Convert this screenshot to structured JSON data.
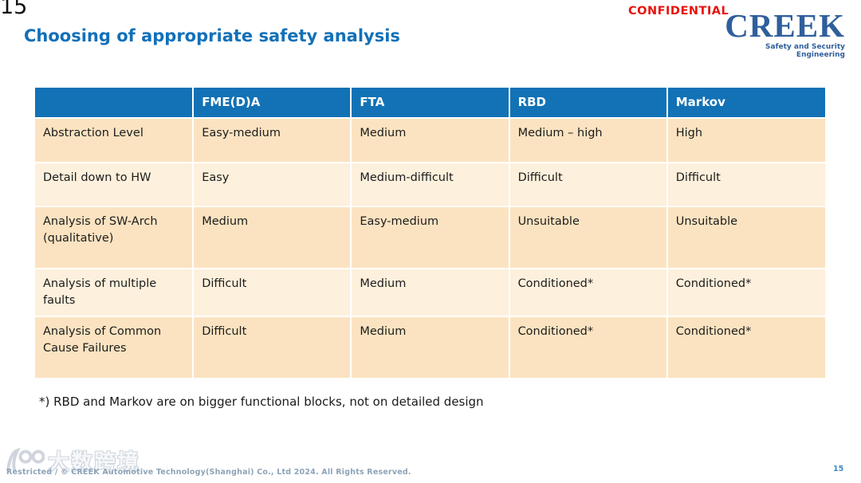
{
  "page": {
    "slide_number_top": "15",
    "slide_number_bottom": "15",
    "title": "Choosing of appropriate safety analysis",
    "confidential_label": "CONFIDENTIAL"
  },
  "logo": {
    "name": "CREEK",
    "tagline": "Safety and Security Engineering"
  },
  "table": {
    "columns": [
      "",
      "FME(D)A",
      "FTA",
      "RBD",
      "Markov"
    ],
    "rows": [
      {
        "label": "Abstraction Level",
        "values": [
          "Easy-medium",
          "Medium",
          "Medium – high",
          "High"
        ]
      },
      {
        "label": "Detail down to HW",
        "values": [
          "Easy",
          "Medium-difficult",
          "Difficult",
          "Difficult"
        ]
      },
      {
        "label": "Analysis of SW-Arch (qualitative)",
        "values": [
          "Medium",
          "Easy-medium",
          "Unsuitable",
          "Unsuitable"
        ]
      },
      {
        "label": "Analysis of multiple faults",
        "values": [
          "Difficult",
          "Medium",
          "Conditioned*",
          "Conditioned*"
        ]
      },
      {
        "label": "Analysis of Common Cause Failures",
        "values": [
          "Difficult",
          "Medium",
          "Conditioned*",
          "Conditioned*"
        ]
      }
    ]
  },
  "footnote": "*) RBD and Markov are on bigger functional blocks, not on detailed design",
  "watermark": {
    "text": "大数跨境"
  },
  "footer": {
    "copyright": "Restricted / © CREEK Automotive Technology(Shanghai) Co., Ltd 2024. All Rights Reserved."
  },
  "colors": {
    "title_blue": "#1270b8",
    "header_blue": "#1272b5",
    "row_dark_peach": "#fbe3c1",
    "row_light_peach": "#fdf0dc",
    "confidential_red": "#e8120c",
    "logo_blue": "#2f5f9c"
  }
}
